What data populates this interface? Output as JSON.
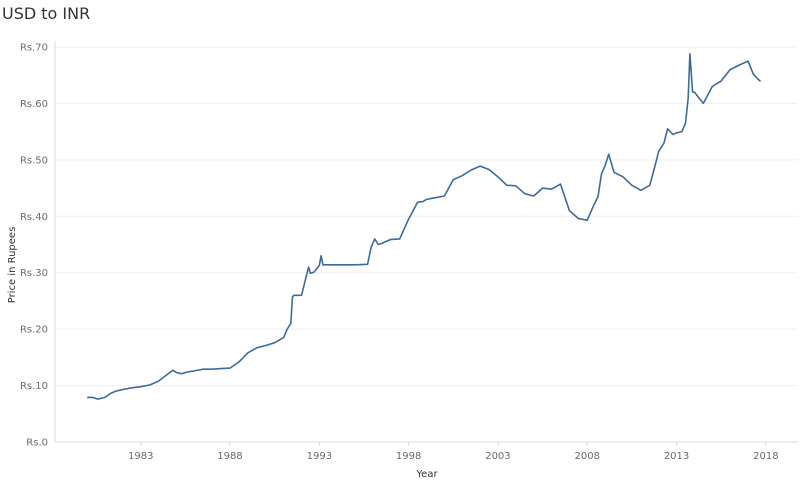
{
  "chart_data": {
    "type": "line",
    "title": "USD to INR",
    "xlabel": "Year",
    "ylabel": "Price in Rupees",
    "xlim": [
      1978.2,
      2019.8
    ],
    "ylim": [
      0,
      70
    ],
    "x_ticks": [
      1983,
      1988,
      1993,
      1998,
      2003,
      2008,
      2013,
      2018
    ],
    "y_ticks": [
      {
        "value": 0,
        "label": "Rs.0"
      },
      {
        "value": 10,
        "label": "Rs.10"
      },
      {
        "value": 20,
        "label": "Rs.20"
      },
      {
        "value": 30,
        "label": "Rs.30"
      },
      {
        "value": 40,
        "label": "Rs.40"
      },
      {
        "value": 50,
        "label": "Rs.50"
      },
      {
        "value": 60,
        "label": "Rs.60"
      },
      {
        "value": 70,
        "label": "Rs.70"
      }
    ],
    "grid": true,
    "line_color": "#3d6b99",
    "series": [
      {
        "x": [
          1980.0,
          1980.3,
          1980.6,
          1981.0,
          1981.3,
          1981.6,
          1982.0,
          1982.5,
          1983.0,
          1983.5,
          1984.0,
          1984.5,
          1984.8,
          1985.0,
          1985.3,
          1985.6,
          1986.0,
          1986.5,
          1987.0,
          1987.5,
          1988.0,
          1988.5,
          1989.0,
          1989.5,
          1990.0,
          1990.5,
          1991.0,
          1991.2,
          1991.4,
          1991.5,
          1991.6,
          1992.0,
          1992.4,
          1992.5,
          1992.7,
          1993.0,
          1993.1,
          1993.2,
          1993.5,
          1994.0,
          1995.0,
          1995.7,
          1995.9,
          1996.1,
          1996.3,
          1996.5,
          1997.0,
          1997.5,
          1998.0,
          1998.5,
          1998.8,
          1999.0,
          1999.5,
          2000.0,
          2000.5,
          2001.0,
          2001.5,
          2002.0,
          2002.5,
          2003.0,
          2003.5,
          2004.0,
          2004.5,
          2005.0,
          2005.5,
          2006.0,
          2006.5,
          2007.0,
          2007.5,
          2008.0,
          2008.3,
          2008.6,
          2008.8,
          2009.0,
          2009.2,
          2009.5,
          2010.0,
          2010.5,
          2011.0,
          2011.5,
          2011.8,
          2012.0,
          2012.3,
          2012.5,
          2012.8,
          2013.0,
          2013.3,
          2013.5,
          2013.65,
          2013.75,
          2013.9,
          2014.0,
          2014.5,
          2015.0,
          2015.5,
          2016.0,
          2016.5,
          2017.0,
          2017.3,
          2017.5,
          2017.7
        ],
        "y": [
          7.9,
          7.9,
          7.6,
          7.9,
          8.6,
          9.0,
          9.3,
          9.6,
          9.8,
          10.1,
          10.8,
          12.0,
          12.7,
          12.3,
          12.1,
          12.4,
          12.6,
          12.9,
          12.9,
          13.0,
          13.1,
          14.2,
          15.8,
          16.7,
          17.1,
          17.6,
          18.5,
          20.0,
          21.0,
          25.8,
          26.0,
          26.0,
          31.0,
          29.9,
          30.1,
          31.3,
          33.0,
          31.4,
          31.4,
          31.4,
          31.4,
          31.5,
          34.5,
          36.0,
          35.0,
          35.2,
          35.9,
          36.0,
          39.5,
          42.5,
          42.6,
          43.0,
          43.3,
          43.6,
          46.5,
          47.2,
          48.2,
          48.9,
          48.3,
          47.0,
          45.5,
          45.4,
          44.0,
          43.6,
          45.0,
          44.8,
          45.7,
          41.0,
          39.6,
          39.3,
          41.5,
          43.5,
          47.5,
          49.0,
          51.0,
          47.8,
          47.0,
          45.5,
          44.6,
          45.5,
          49.0,
          51.5,
          53.0,
          55.5,
          54.5,
          54.8,
          55.0,
          56.5,
          61.0,
          68.8,
          62.0,
          62.0,
          60.0,
          63.0,
          64.0,
          66.0,
          66.8,
          67.5,
          65.2,
          64.5,
          63.9
        ]
      }
    ]
  }
}
